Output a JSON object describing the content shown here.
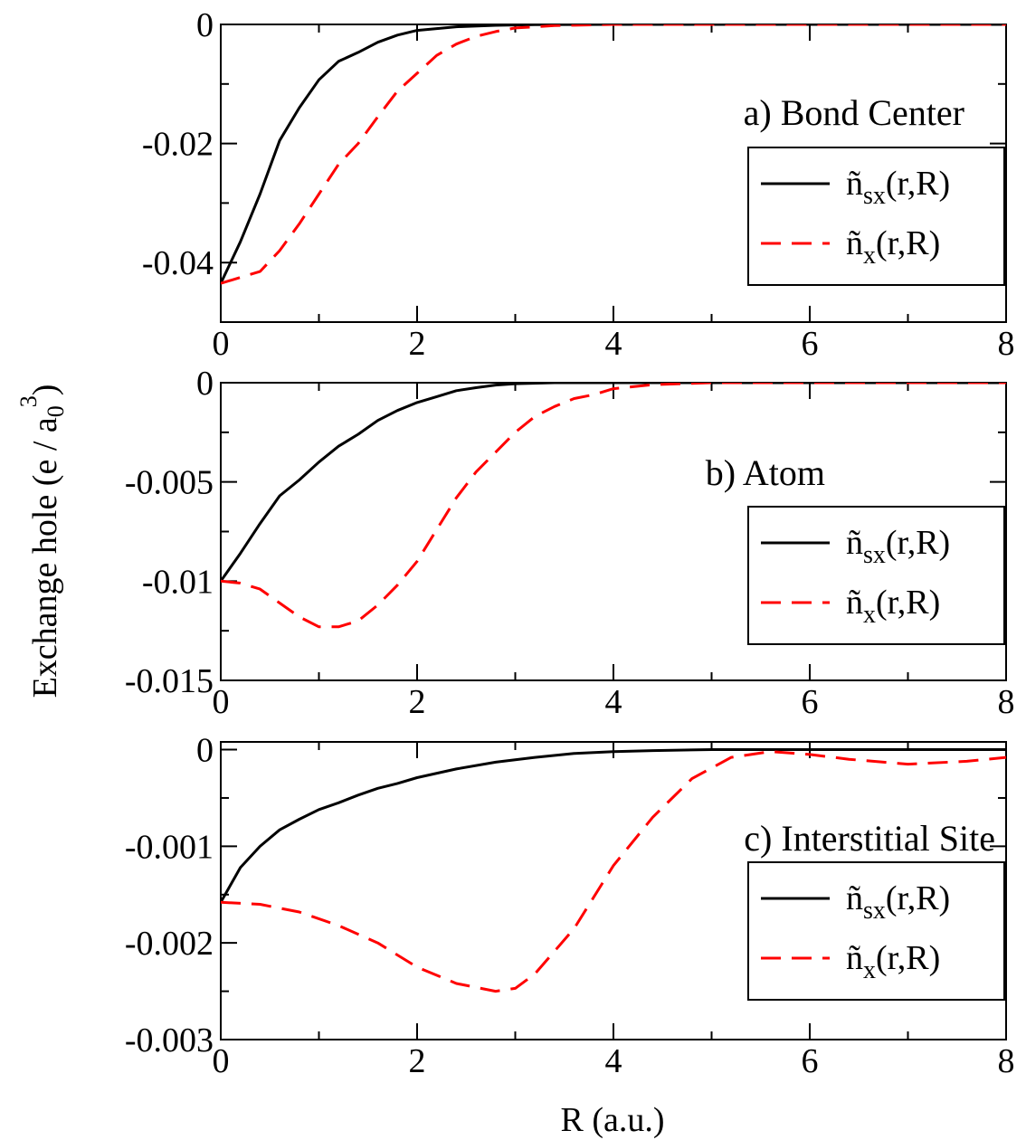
{
  "figure": {
    "ylabel": {
      "main": "Exchange hole (e / a",
      "sub": "0",
      "sup": "3",
      "close": ")"
    },
    "xlabel": "R (a.u.)"
  },
  "chart_data": [
    {
      "type": "line",
      "title": "a) Bond Center",
      "xlim": [
        0,
        8
      ],
      "ylim": [
        -0.05,
        0
      ],
      "xticks": [
        0,
        2,
        4,
        6,
        8
      ],
      "xtick_labels": [
        "0",
        "2",
        "4",
        "6",
        "8"
      ],
      "yticks": [
        0,
        -0.02,
        -0.04
      ],
      "ytick_labels": [
        "0",
        "-0.02",
        "-0.04"
      ],
      "legend": "right",
      "series": [
        {
          "name": "ñsx(r,R)",
          "legend_main": "ñ",
          "legend_sub": "sx",
          "legend_tail": "(r,R)",
          "color": "#000000",
          "dash": "solid",
          "x": [
            0,
            0.2,
            0.4,
            0.6,
            0.8,
            1.0,
            1.2,
            1.4,
            1.6,
            1.8,
            2.0,
            2.4,
            2.8,
            3.2,
            4,
            5,
            6,
            7,
            8
          ],
          "y": [
            -0.0435,
            -0.0365,
            -0.0285,
            -0.0195,
            -0.014,
            -0.0093,
            -0.0062,
            -0.0047,
            -0.003,
            -0.0018,
            -0.001,
            -0.0004,
            -0.00015,
            -5e-05,
            0,
            0,
            0,
            0,
            0
          ]
        },
        {
          "name": "ñx(r,R)",
          "legend_main": "ñ",
          "legend_sub": "x",
          "legend_tail": "(r,R)",
          "color": "#ff0000",
          "dash": "dashed",
          "x": [
            0,
            0.2,
            0.4,
            0.6,
            0.8,
            1.0,
            1.2,
            1.4,
            1.6,
            1.8,
            2.0,
            2.2,
            2.4,
            2.6,
            2.8,
            3.0,
            3.4,
            4,
            5,
            6,
            7,
            8
          ],
          "y": [
            -0.0435,
            -0.0425,
            -0.0415,
            -0.038,
            -0.0335,
            -0.0285,
            -0.0235,
            -0.02,
            -0.0155,
            -0.0112,
            -0.0082,
            -0.0052,
            -0.0033,
            -0.002,
            -0.0012,
            -0.0006,
            -0.0002,
            0,
            0,
            0,
            0,
            0
          ]
        }
      ]
    },
    {
      "type": "line",
      "title": "b) Atom",
      "xlim": [
        0,
        8
      ],
      "ylim": [
        -0.015,
        0
      ],
      "xticks": [
        0,
        2,
        4,
        6,
        8
      ],
      "xtick_labels": [
        "0",
        "2",
        "4",
        "6",
        "8"
      ],
      "yticks": [
        0,
        -0.005,
        -0.01,
        -0.015
      ],
      "ytick_labels": [
        "0",
        "-0.005",
        "-0.01",
        "-0.015"
      ],
      "legend": "right",
      "series": [
        {
          "name": "ñsx(r,R)",
          "legend_main": "ñ",
          "legend_sub": "sx",
          "legend_tail": "(r,R)",
          "color": "#000000",
          "dash": "solid",
          "x": [
            0,
            0.2,
            0.4,
            0.6,
            0.8,
            1.0,
            1.2,
            1.4,
            1.6,
            1.8,
            2.0,
            2.2,
            2.4,
            2.6,
            2.8,
            3.0,
            3.4,
            4,
            5,
            6,
            7,
            8
          ],
          "y": [
            -0.01,
            -0.0086,
            -0.0071,
            -0.0057,
            -0.0049,
            -0.004,
            -0.0032,
            -0.0026,
            -0.0019,
            -0.0014,
            -0.001,
            -0.0007,
            -0.0004,
            -0.00025,
            -0.00012,
            -5e-05,
            0,
            0,
            0,
            0,
            0,
            0
          ]
        },
        {
          "name": "ñx(r,R)",
          "legend_main": "ñ",
          "legend_sub": "x",
          "legend_tail": "(r,R)",
          "color": "#ff0000",
          "dash": "dashed",
          "x": [
            0,
            0.2,
            0.4,
            0.6,
            0.8,
            1.0,
            1.2,
            1.4,
            1.6,
            1.8,
            2.0,
            2.2,
            2.4,
            2.6,
            2.8,
            3.0,
            3.2,
            3.4,
            3.6,
            3.8,
            4.0,
            4.4,
            5,
            6,
            7,
            8
          ],
          "y": [
            -0.01,
            -0.0101,
            -0.0104,
            -0.0111,
            -0.0118,
            -0.0123,
            -0.0123,
            -0.012,
            -0.0112,
            -0.0102,
            -0.009,
            -0.0074,
            -0.0058,
            -0.0045,
            -0.0035,
            -0.0025,
            -0.0017,
            -0.0012,
            -0.0008,
            -0.0006,
            -0.0003,
            -0.0001,
            0,
            0,
            0,
            0
          ]
        }
      ]
    },
    {
      "type": "line",
      "title": "c) Interstitial Site",
      "xlim": [
        0,
        8
      ],
      "ylim": [
        -0.003,
        8e-05
      ],
      "xticks": [
        0,
        2,
        4,
        6,
        8
      ],
      "xtick_labels": [
        "0",
        "2",
        "4",
        "6",
        "8"
      ],
      "yticks": [
        0,
        -0.001,
        -0.002,
        -0.003
      ],
      "ytick_labels": [
        "0",
        "-0.001",
        "-0.002",
        "-0.003"
      ],
      "legend": "right",
      "series": [
        {
          "name": "ñsx(r,R)",
          "legend_main": "ñ",
          "legend_sub": "sx",
          "legend_tail": "(r,R)",
          "color": "#000000",
          "dash": "solid",
          "x": [
            0,
            0.2,
            0.4,
            0.6,
            0.8,
            1.0,
            1.2,
            1.4,
            1.6,
            1.8,
            2.0,
            2.4,
            2.8,
            3.2,
            3.6,
            4.0,
            4.4,
            5,
            6,
            7,
            8
          ],
          "y": [
            -0.00158,
            -0.00122,
            -0.001,
            -0.00083,
            -0.00072,
            -0.00062,
            -0.00055,
            -0.00047,
            -0.0004,
            -0.00035,
            -0.00029,
            -0.0002,
            -0.00013,
            -8e-05,
            -4e-05,
            -2e-05,
            -1e-05,
            0,
            0,
            0,
            0
          ]
        },
        {
          "name": "ñx(r,R)",
          "legend_main": "ñ",
          "legend_sub": "x",
          "legend_tail": "(r,R)",
          "color": "#ff0000",
          "dash": "dashed",
          "x": [
            0,
            0.4,
            0.8,
            1.2,
            1.6,
            2.0,
            2.4,
            2.8,
            3.0,
            3.2,
            3.6,
            4.0,
            4.4,
            4.8,
            5.2,
            5.6,
            6.0,
            6.4,
            7.0,
            7.6,
            8.0
          ],
          "y": [
            -0.00158,
            -0.0016,
            -0.00168,
            -0.00182,
            -0.002,
            -0.00225,
            -0.00242,
            -0.0025,
            -0.00247,
            -0.00232,
            -0.00185,
            -0.0012,
            -0.0007,
            -0.0003,
            -8e-05,
            -2e-05,
            -5e-05,
            -0.0001,
            -0.00015,
            -0.00012,
            -8e-05
          ]
        }
      ]
    }
  ]
}
